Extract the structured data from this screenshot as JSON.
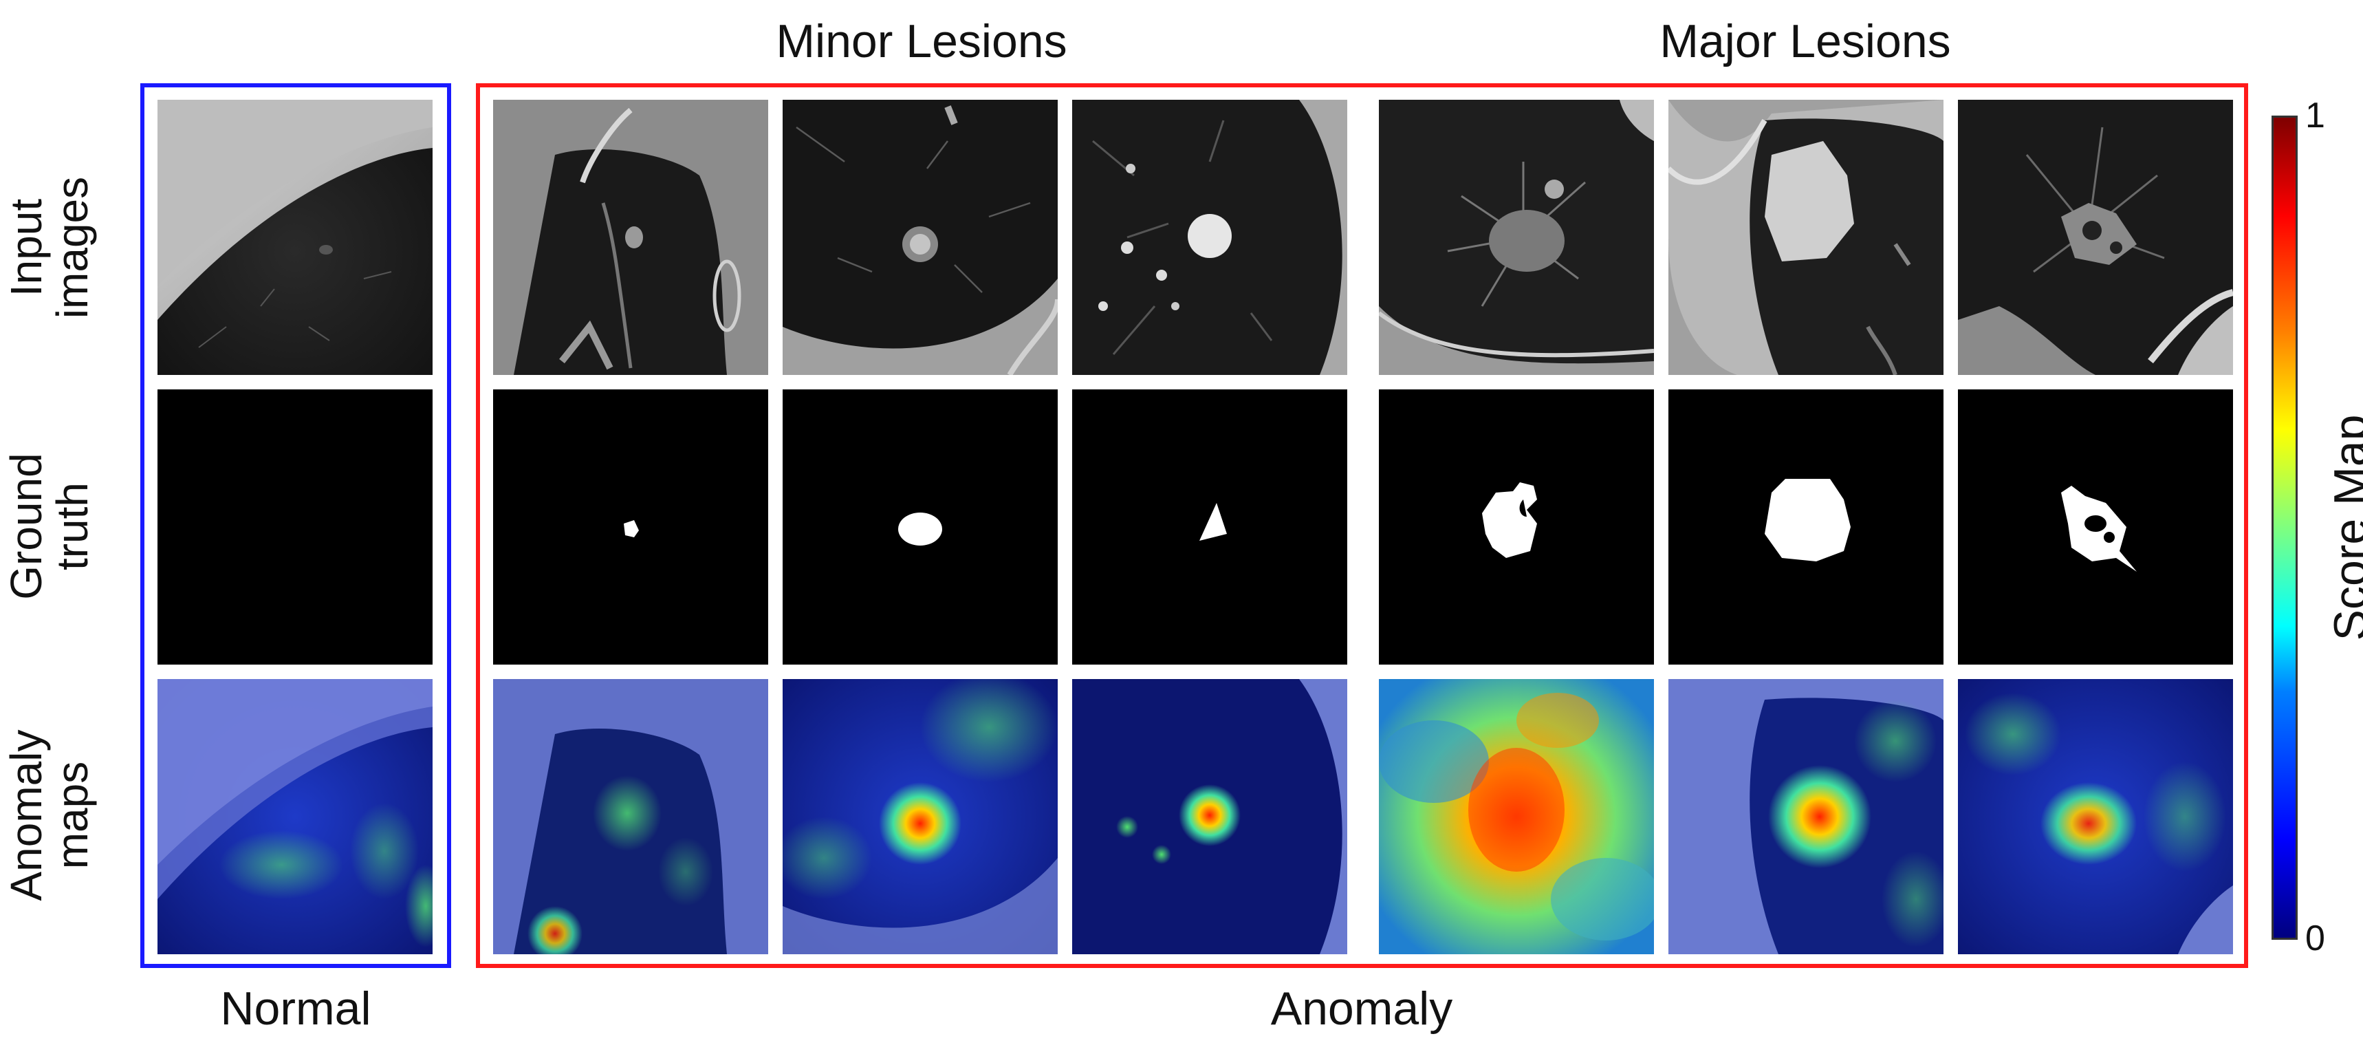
{
  "headers": {
    "minor": "Minor Lesions",
    "major": "Major Lesions"
  },
  "row_labels": [
    {
      "line1": "Input",
      "line2": "images"
    },
    {
      "line1": "Ground",
      "line2": "truth"
    },
    {
      "line1": "Anomaly",
      "line2": "maps"
    }
  ],
  "footers": {
    "normal": "Normal",
    "anomaly": "Anomaly"
  },
  "colorbar": {
    "title": "Score Map",
    "max_label": "1",
    "min_label": "0",
    "colormap": "jet"
  },
  "colors": {
    "normal_frame": "#1a1aff",
    "anomaly_frame": "#ff1a1a",
    "mask_bg": "#000000",
    "mask_fg": "#ffffff"
  },
  "columns": [
    {
      "group": "Normal",
      "content": "ct-lung-normal"
    },
    {
      "group": "Minor Lesions",
      "content": "ct-lung-small-nodule"
    },
    {
      "group": "Minor Lesions",
      "content": "ct-lung-ring-nodule"
    },
    {
      "group": "Minor Lesions",
      "content": "ct-lung-round-nodule"
    },
    {
      "group": "Major Lesions",
      "content": "ct-lung-spiculated-mass"
    },
    {
      "group": "Major Lesions",
      "content": "ct-lung-large-mass"
    },
    {
      "group": "Major Lesions",
      "content": "ct-lung-cavitary-mass"
    }
  ]
}
